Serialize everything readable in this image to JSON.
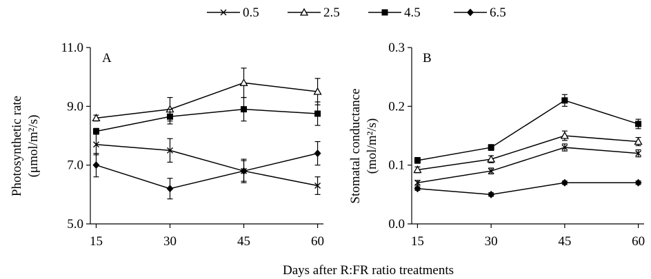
{
  "legend": {
    "placement": "top-center",
    "entries": [
      {
        "label": "0.5",
        "marker": "x"
      },
      {
        "label": "2.5",
        "marker": "triangle-open"
      },
      {
        "label": "4.5",
        "marker": "square-filled"
      },
      {
        "label": "6.5",
        "marker": "diamond-filled"
      }
    ]
  },
  "xlabel": "Days after R:FR ratio treatments",
  "chart_data": [
    {
      "type": "line",
      "panel_label": "A",
      "title": "",
      "xlabel": "Days after R:FR ratio treatments",
      "ylabel": "Photosynthetic rate",
      "ylabel_unit": "(μmol/m²/s)",
      "x": [
        15,
        30,
        45,
        60
      ],
      "xticks": [
        "15",
        "30",
        "45",
        "60"
      ],
      "ylim": [
        5.0,
        11.0
      ],
      "yticks": [
        "5.0",
        "7.0",
        "9.0",
        "11.0"
      ],
      "ytick_values": [
        5.0,
        7.0,
        9.0,
        11.0
      ],
      "grid": false,
      "series": [
        {
          "name": "0.5",
          "marker": "x",
          "values": [
            7.7,
            7.5,
            6.8,
            6.3
          ],
          "errors": [
            0.35,
            0.4,
            0.35,
            0.3
          ]
        },
        {
          "name": "2.5",
          "marker": "triangle-open",
          "values": [
            8.6,
            8.9,
            9.8,
            9.5
          ],
          "errors": [
            0.1,
            0.4,
            0.5,
            0.45
          ]
        },
        {
          "name": "4.5",
          "marker": "square-filled",
          "values": [
            8.15,
            8.65,
            8.9,
            8.75
          ],
          "errors": [
            0.1,
            0.25,
            0.4,
            0.4
          ]
        },
        {
          "name": "6.5",
          "marker": "diamond-filled",
          "values": [
            7.0,
            6.2,
            6.8,
            7.4
          ],
          "errors": [
            0.4,
            0.35,
            0.4,
            0.4
          ]
        }
      ]
    },
    {
      "type": "line",
      "panel_label": "B",
      "title": "",
      "xlabel": "Days after R:FR ratio treatments",
      "ylabel": "Stomatal conductance",
      "ylabel_unit": "(mol/m²/s)",
      "x": [
        15,
        30,
        45,
        60
      ],
      "xticks": [
        "15",
        "30",
        "45",
        "60"
      ],
      "ylim": [
        0.0,
        0.3
      ],
      "yticks": [
        "0.0",
        "0.1",
        "0.2",
        "0.3"
      ],
      "ytick_values": [
        0.0,
        0.1,
        0.2,
        0.3
      ],
      "grid": false,
      "series": [
        {
          "name": "0.5",
          "marker": "x",
          "values": [
            0.07,
            0.09,
            0.13,
            0.12
          ],
          "errors": [
            0.004,
            0.005,
            0.006,
            0.006
          ]
        },
        {
          "name": "2.5",
          "marker": "triangle-open",
          "values": [
            0.092,
            0.11,
            0.15,
            0.14
          ],
          "errors": [
            0.005,
            0.006,
            0.008,
            0.007
          ]
        },
        {
          "name": "4.5",
          "marker": "square-filled",
          "values": [
            0.108,
            0.13,
            0.21,
            0.17
          ],
          "errors": [
            0.005,
            0.005,
            0.01,
            0.008
          ]
        },
        {
          "name": "6.5",
          "marker": "diamond-filled",
          "values": [
            0.06,
            0.05,
            0.07,
            0.07
          ],
          "errors": [
            0.003,
            0.003,
            0.003,
            0.003
          ]
        }
      ]
    }
  ]
}
